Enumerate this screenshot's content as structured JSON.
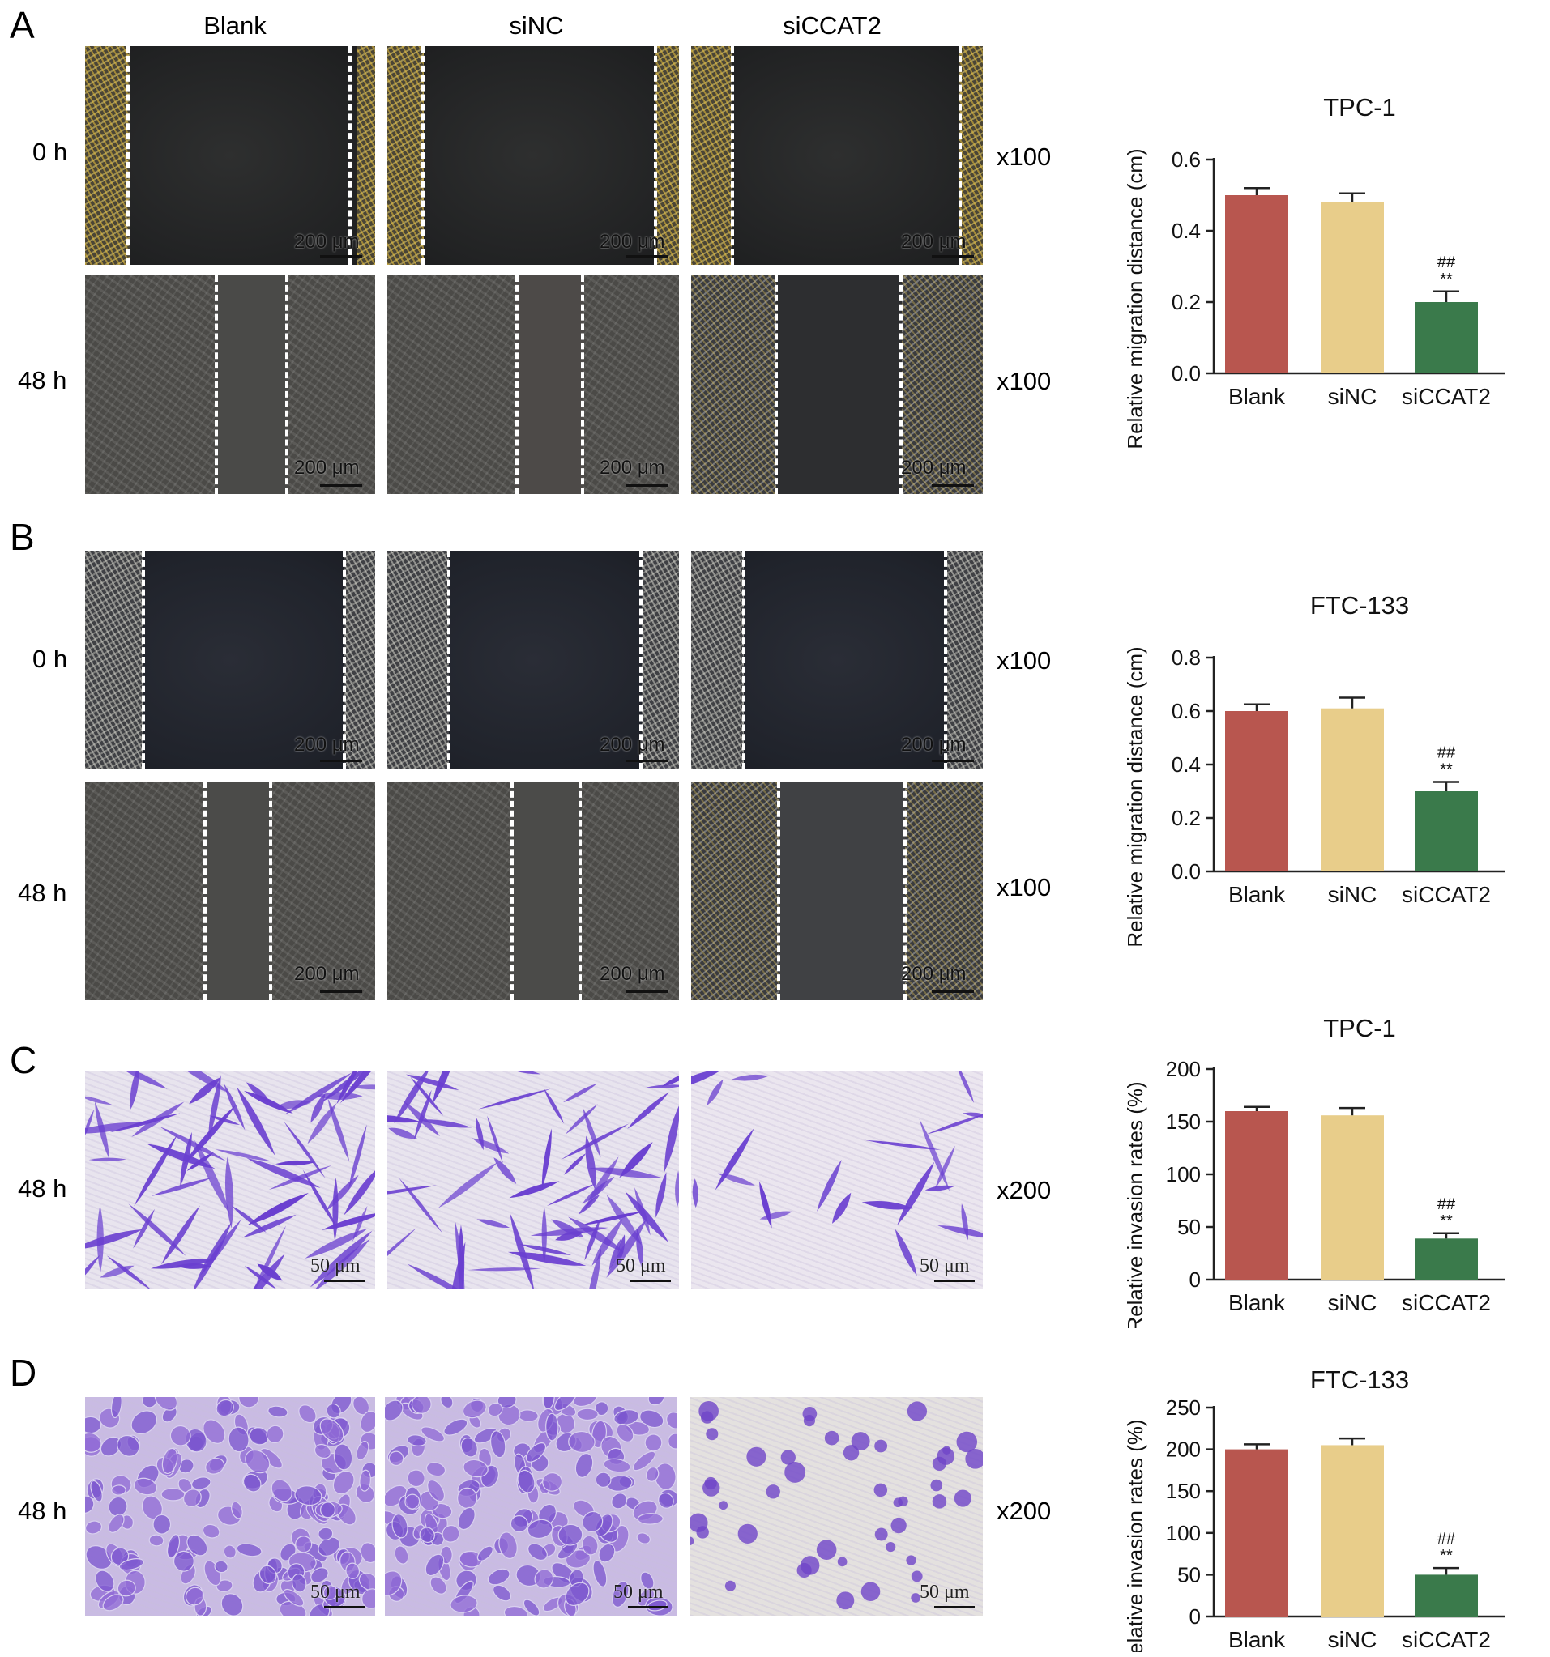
{
  "panels": {
    "A": "A",
    "B": "B",
    "C": "C",
    "D": "D"
  },
  "columns": [
    "Blank",
    "siNC",
    "siCCAT2"
  ],
  "rows": {
    "A_top": "0 h",
    "A_bottom": "48 h",
    "B_top": "0 h",
    "B_bottom": "48 h",
    "C": "48 h",
    "D": "48 h"
  },
  "magnification": {
    "A_top": "x100",
    "A_bottom": "x100",
    "B_top": "x100",
    "B_bottom": "x100",
    "C": "x200",
    "D": "x200"
  },
  "scale_labels": {
    "migration": "200 μm",
    "invasion": "50 μm"
  },
  "colors": {
    "blank": "#b8564f",
    "siNC": "#e8cd8a",
    "siCCAT2": "#3a7a4b",
    "crystal_violet": "#6a3fd0"
  },
  "chart_data": [
    {
      "type": "bar",
      "title": "TPC-1",
      "ylabel": "Relative migration distance (cm)",
      "categories": [
        "Blank",
        "siNC",
        "siCCAT2"
      ],
      "values": [
        0.5,
        0.48,
        0.2
      ],
      "errors": [
        0.02,
        0.025,
        0.03
      ],
      "ylim": [
        0.0,
        0.6
      ],
      "yticks": [
        "0.0",
        "0.2",
        "0.4",
        "0.6"
      ],
      "tick_values": [
        0.0,
        0.2,
        0.4,
        0.6
      ],
      "annotations": {
        "2": [
          "##",
          "**"
        ]
      }
    },
    {
      "type": "bar",
      "title": "FTC-133",
      "ylabel": "Relative migration distance (cm)",
      "categories": [
        "Blank",
        "siNC",
        "siCCAT2"
      ],
      "values": [
        0.6,
        0.61,
        0.3
      ],
      "errors": [
        0.025,
        0.04,
        0.035
      ],
      "ylim": [
        0.0,
        0.8
      ],
      "yticks": [
        "0.0",
        "0.2",
        "0.4",
        "0.6",
        "0.8"
      ],
      "tick_values": [
        0.0,
        0.2,
        0.4,
        0.6,
        0.8
      ],
      "annotations": {
        "2": [
          "##",
          "**"
        ]
      }
    },
    {
      "type": "bar",
      "title": "TPC-1",
      "ylabel": "Relative invasion rates (%)",
      "categories": [
        "Blank",
        "siNC",
        "siCCAT2"
      ],
      "values": [
        160,
        156,
        39
      ],
      "errors": [
        4,
        7,
        5
      ],
      "ylim": [
        0,
        200
      ],
      "yticks": [
        "0",
        "50",
        "100",
        "150",
        "200"
      ],
      "tick_values": [
        0,
        50,
        100,
        150,
        200
      ],
      "annotations": {
        "2": [
          "##",
          "**"
        ]
      }
    },
    {
      "type": "bar",
      "title": "FTC-133",
      "ylabel": "Relative invasion rates (%)",
      "categories": [
        "Blank",
        "siNC",
        "siCCAT2"
      ],
      "values": [
        200,
        205,
        50
      ],
      "errors": [
        6,
        8,
        8
      ],
      "ylim": [
        0,
        250
      ],
      "yticks": [
        "0",
        "50",
        "100",
        "150",
        "200",
        "250"
      ],
      "tick_values": [
        0,
        50,
        100,
        150,
        200,
        250
      ],
      "annotations": {
        "2": [
          "##",
          "**"
        ]
      }
    }
  ]
}
